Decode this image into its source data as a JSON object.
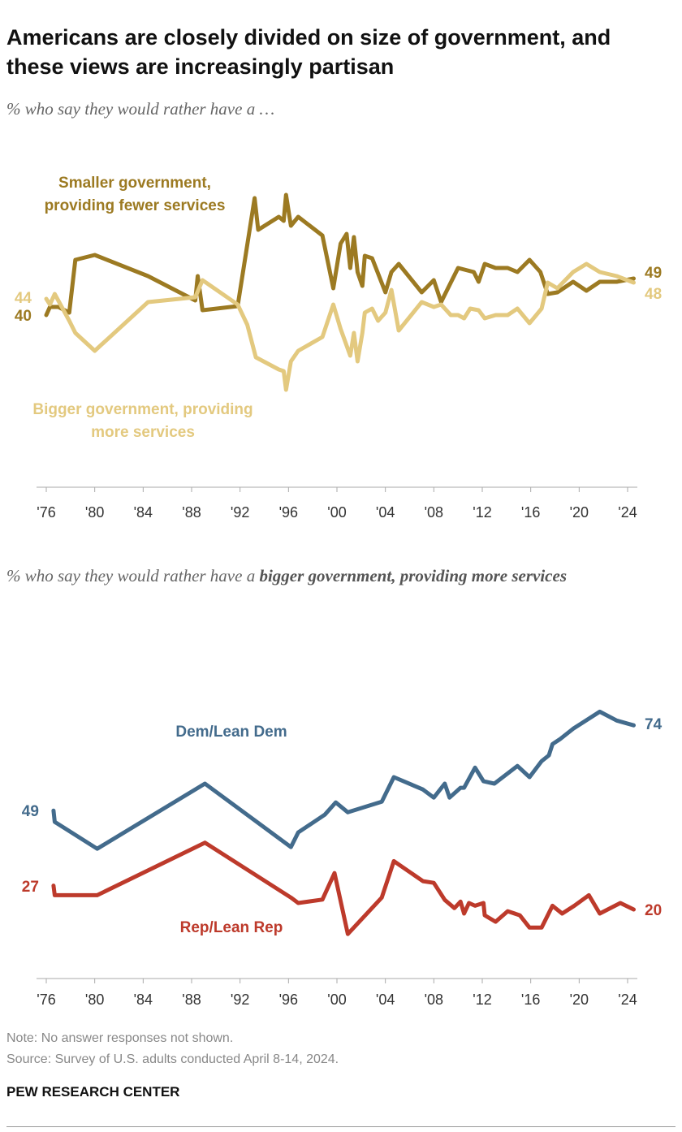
{
  "title": "Americans are closely divided on size of government, and these views are increasingly partisan",
  "note": "Note: No answer responses not shown.",
  "source": "Source: Survey of U.S. adults conducted April 8-14, 2024.",
  "footer": "PEW RESEARCH CENTER",
  "chart_data": [
    {
      "type": "line",
      "subtitle": "% who say they would rather have a …",
      "xlim": [
        1976,
        2024
      ],
      "ylim": [
        0,
        80
      ],
      "xticks": [
        {
          "value": 1976,
          "label": "'76"
        },
        {
          "value": 1980,
          "label": "'80"
        },
        {
          "value": 1984,
          "label": "'84"
        },
        {
          "value": 1988,
          "label": "'88"
        },
        {
          "value": 1992,
          "label": "'92"
        },
        {
          "value": 1996,
          "label": "'96"
        },
        {
          "value": 2000,
          "label": "'00"
        },
        {
          "value": 2004,
          "label": "'04"
        },
        {
          "value": 2008,
          "label": "'08"
        },
        {
          "value": 2012,
          "label": "'12"
        },
        {
          "value": 2016,
          "label": "'16"
        },
        {
          "value": 2020,
          "label": "'20"
        },
        {
          "value": 2024,
          "label": "'24"
        }
      ],
      "series": [
        {
          "name": "Smaller government, providing fewer services",
          "color": "#9c7a22",
          "x": [
            1976.0,
            1976.3,
            1977.0,
            1977.9,
            1978.4,
            1980.0,
            1984.4,
            1988.3,
            1988.5,
            1988.9,
            1991.8,
            1993.2,
            1993.5,
            1995.2,
            1995.6,
            1995.8,
            1996.2,
            1996.8,
            1998.8,
            1999.7,
            2000.3,
            2000.8,
            2001.1,
            2001.4,
            2001.7,
            2002.1,
            2002.3,
            2002.9,
            2004.0,
            2004.5,
            2005.1,
            2007.0,
            2008.0,
            2008.6,
            2009.4,
            2010.0,
            2011.3,
            2011.7,
            2012.2,
            2013.1,
            2014.1,
            2014.9,
            2015.9,
            2016.8,
            2017.4,
            2018.2,
            2019.5,
            2020.6,
            2021.7,
            2023.1,
            2024.5
          ],
          "values": [
            40,
            42,
            42,
            40.6,
            53.6,
            54.8,
            49.6,
            43.6,
            49.6,
            41.2,
            42.2,
            68.8,
            61,
            64.2,
            63.2,
            69.6,
            62,
            64.2,
            59.6,
            46.6,
            57.6,
            60,
            51.6,
            59.2,
            50.6,
            47.2,
            54.6,
            54,
            45.6,
            50.6,
            52.6,
            45.6,
            48.6,
            43.2,
            48,
            51.6,
            50.6,
            48.2,
            52.6,
            51.6,
            51.6,
            50.6,
            53.6,
            50.6,
            45.2,
            45.6,
            48.2,
            46,
            48.2,
            48.2,
            49
          ]
        },
        {
          "name": "Bigger government, providing more services",
          "color": "#e3c97f",
          "x": [
            1976.0,
            1976.3,
            1976.7,
            1977.9,
            1978.4,
            1980.0,
            1984.4,
            1988.3,
            1988.9,
            1991.8,
            1992.6,
            1993.3,
            1995.2,
            1995.6,
            1995.8,
            1996.2,
            1996.8,
            1998.8,
            1999.7,
            2000.3,
            2001.1,
            2001.4,
            2001.7,
            2002.1,
            2002.3,
            2002.9,
            2003.4,
            2004.0,
            2004.5,
            2005.1,
            2007.0,
            2008.0,
            2008.6,
            2009.4,
            2010.0,
            2010.5,
            2011.0,
            2011.7,
            2012.2,
            2013.1,
            2014.1,
            2014.9,
            2015.9,
            2016.9,
            2017.4,
            2018.2,
            2019.5,
            2020.6,
            2021.7,
            2023.1,
            2024.5
          ],
          "values": [
            44,
            42.6,
            45.2,
            38.6,
            35.6,
            31.2,
            43.2,
            44.4,
            48.6,
            42.6,
            37.6,
            29.6,
            26.6,
            26.2,
            21.6,
            28.6,
            31.2,
            34.6,
            42.6,
            36.6,
            30,
            35.6,
            28.6,
            35.6,
            40.6,
            41.6,
            38.6,
            40.6,
            46.2,
            36.2,
            43.2,
            42,
            42.6,
            40,
            40,
            39.2,
            41.6,
            41.2,
            39.2,
            40,
            40,
            41.6,
            38,
            41.6,
            48,
            46.6,
            50.6,
            52.6,
            50.6,
            49.6,
            48
          ]
        }
      ]
    },
    {
      "type": "line",
      "subtitle": "% who say they would rather have a",
      "subtitle_bold": "bigger government, providing more services",
      "xlim": [
        1976,
        2024
      ],
      "ylim": [
        0,
        90
      ],
      "xticks": [
        {
          "value": 1976,
          "label": "'76"
        },
        {
          "value": 1980,
          "label": "'80"
        },
        {
          "value": 1984,
          "label": "'84"
        },
        {
          "value": 1988,
          "label": "'88"
        },
        {
          "value": 1992,
          "label": "'92"
        },
        {
          "value": 1996,
          "label": "'96"
        },
        {
          "value": 2000,
          "label": "'00"
        },
        {
          "value": 2004,
          "label": "'04"
        },
        {
          "value": 2008,
          "label": "'08"
        },
        {
          "value": 2012,
          "label": "'12"
        },
        {
          "value": 2016,
          "label": "'16"
        },
        {
          "value": 2020,
          "label": "'20"
        },
        {
          "value": 2024,
          "label": "'24"
        }
      ],
      "series": [
        {
          "name": "Dem/Lean Dem",
          "color": "#436b8c",
          "x": [
            1976.6,
            1976.7,
            1980.2,
            1989.1,
            1996.2,
            1996.8,
            1999.0,
            1999.9,
            2000.9,
            2003.7,
            2004.7,
            2007.1,
            2008.0,
            2008.9,
            2009.3,
            2010.2,
            2010.5,
            2011.4,
            2012.1,
            2013.0,
            2014.9,
            2015.9,
            2016.9,
            2017.5,
            2017.8,
            2018.4,
            2019.5,
            2021.7,
            2023.1,
            2024.5
          ],
          "values": [
            49,
            45.7,
            37.8,
            56.9,
            38.3,
            42.6,
            47.8,
            51.4,
            48.5,
            51.6,
            58.8,
            55.2,
            52.8,
            56.9,
            52.8,
            55.7,
            55.7,
            61.6,
            57.6,
            56.9,
            62.1,
            58.8,
            63.5,
            65.2,
            68.5,
            69.9,
            73,
            78,
            75.4,
            74
          ]
        },
        {
          "name": "Rep/Lean Rep",
          "color": "#bd3a2b",
          "x": [
            1976.6,
            1976.7,
            1980.2,
            1989.1,
            1996.2,
            1996.8,
            1998.8,
            1999.8,
            2000.9,
            2003.7,
            2004.7,
            2007.1,
            2008.0,
            2008.9,
            2009.7,
            2010.2,
            2010.5,
            2010.9,
            2011.4,
            2012.1,
            2012.2,
            2013.1,
            2014.1,
            2015.1,
            2015.9,
            2016.9,
            2017.8,
            2018.6,
            2019.6,
            2020.8,
            2021.7,
            2023.4,
            2024.5
          ],
          "values": [
            27,
            24.2,
            24.2,
            39.6,
            23.5,
            21.9,
            22.9,
            30.7,
            12.8,
            23.5,
            34.2,
            28.3,
            27.8,
            22.8,
            20.4,
            22.3,
            18.8,
            21.9,
            21.1,
            21.9,
            18.3,
            16.4,
            19.5,
            18.3,
            14.7,
            14.7,
            21.1,
            18.8,
            21.1,
            24.2,
            18.8,
            21.9,
            20
          ]
        }
      ]
    }
  ]
}
